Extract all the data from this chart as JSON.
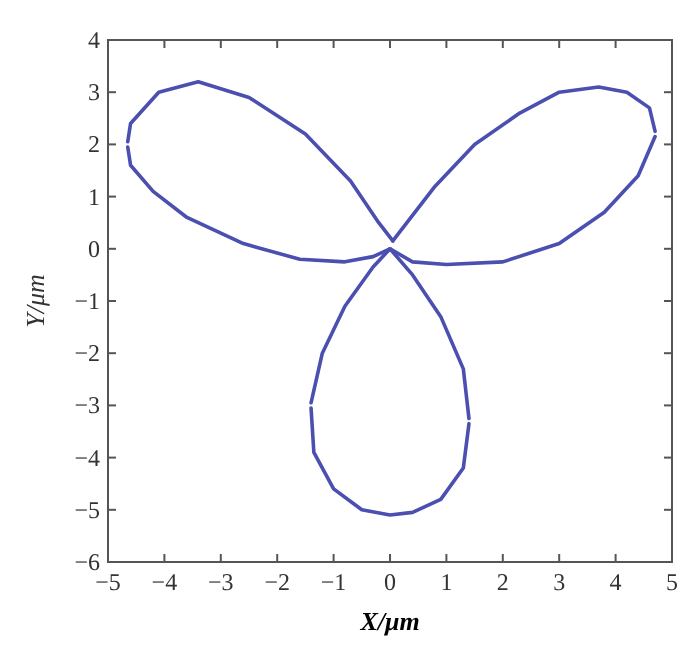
{
  "chart_data": {
    "type": "line",
    "xlabel": "X/μm",
    "ylabel": "Y/μm",
    "xlim": [
      -5,
      5
    ],
    "ylim": [
      -6,
      4
    ],
    "xticks": [
      -5,
      -4,
      -3,
      -2,
      -1,
      0,
      1,
      2,
      3,
      4,
      5
    ],
    "yticks": [
      -6,
      -5,
      -4,
      -3,
      -2,
      -1,
      0,
      1,
      2,
      3,
      4
    ],
    "grid": false,
    "marker": "none",
    "line_style": "solid",
    "series": [
      {
        "color": "#4a4fb0",
        "x": [
          -4.65,
          -4.6,
          -4.1,
          -3.4,
          -2.5,
          -1.5,
          -0.7,
          -0.2,
          0.05
        ],
        "values": [
          2.05,
          2.4,
          3.0,
          3.2,
          2.9,
          2.2,
          1.3,
          0.5,
          0.15
        ]
      },
      {
        "color": "#4a4fb0",
        "x": [
          -4.65,
          -4.6,
          -4.2,
          -3.6,
          -2.6,
          -1.6,
          -0.8,
          -0.3,
          0
        ],
        "values": [
          1.95,
          1.6,
          1.1,
          0.6,
          0.1,
          -0.2,
          -0.25,
          -0.15,
          0
        ]
      },
      {
        "color": "#4a4fb0",
        "x": [
          0.05,
          0.3,
          0.8,
          1.5,
          2.3,
          3,
          3.7,
          4.2,
          4.6,
          4.7
        ],
        "values": [
          0.15,
          0.5,
          1.2,
          2.0,
          2.6,
          3.0,
          3.1,
          3.0,
          2.7,
          2.25
        ]
      },
      {
        "color": "#4a4fb0",
        "x": [
          0,
          0.4,
          1,
          2,
          3,
          3.8,
          4.4,
          4.7
        ],
        "values": [
          0,
          -0.25,
          -0.3,
          -0.25,
          0.1,
          0.7,
          1.4,
          2.15
        ]
      },
      {
        "color": "#4a4fb0",
        "x": [
          -1.4,
          -1.2,
          -0.8,
          -0.3,
          0,
          0.4,
          0.9,
          1.3,
          1.4
        ],
        "values": [
          -2.95,
          -2.0,
          -1.1,
          -0.35,
          0,
          -0.5,
          -1.3,
          -2.3,
          -3.25
        ]
      },
      {
        "color": "#4a4fb0",
        "x": [
          -1.4,
          -1.35,
          -1.0,
          -0.5,
          0,
          0.4,
          0.9,
          1.3,
          1.4
        ],
        "values": [
          -3.05,
          -3.9,
          -4.6,
          -5.0,
          -5.1,
          -5.05,
          -4.8,
          -4.2,
          -3.35
        ]
      }
    ]
  }
}
